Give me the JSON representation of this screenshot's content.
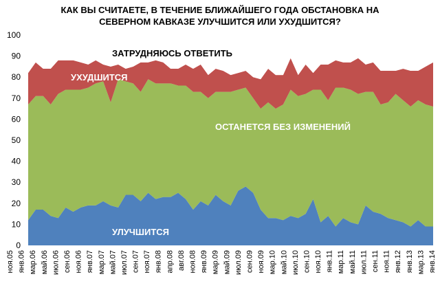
{
  "chart_data": {
    "type": "area",
    "stacked": true,
    "title_lines": [
      "КАК ВЫ СЧИТАЕТЕ, В ТЕЧЕНИЕ БЛИЖАЙШЕГО ГОДА ОБСТАНОВКА НА",
      "СЕВЕРНОМ КАВКАЗЕ УЛУЧШИТСЯ ИЛИ УХУДШИТСЯ?"
    ],
    "xlabel": "",
    "ylabel": "",
    "ylim": [
      0,
      100
    ],
    "yticks": [
      0,
      10,
      20,
      30,
      40,
      50,
      60,
      70,
      80,
      90,
      100
    ],
    "grid": false,
    "legend": "none",
    "x_tick_labels": [
      "ноя.05",
      "янв.06",
      "мар.06",
      "май.06",
      "июл.06",
      "сен.06",
      "ноя.06",
      "янв.07",
      "мар.07",
      "май.07",
      "июл.07",
      "сен.07",
      "ноя.07",
      "янв.08",
      "апр.08",
      "авг.08",
      "ноя.08",
      "янв.09",
      "мар.09",
      "май.09",
      "июл.09",
      "сен.09",
      "ноя.09",
      "мар.10",
      "май.10",
      "июл.10",
      "сен.10",
      "ноя.10",
      "янв.11",
      "мар.11",
      "май.11",
      "июл.11",
      "сен.11",
      "ноя.11",
      "янв.12",
      "янв.13",
      "мар.13",
      "янв.14"
    ],
    "series": [
      {
        "name": "УЛУЧШИТСЯ",
        "color": "#4f81bd",
        "values": [
          12,
          17,
          17,
          14,
          13,
          18,
          16,
          18,
          19,
          19,
          21,
          19,
          18,
          24,
          24,
          21,
          25,
          22,
          23,
          23,
          25,
          22,
          17,
          21,
          19,
          24,
          21,
          19,
          26,
          28,
          25,
          17,
          13,
          13,
          12,
          14,
          13,
          15,
          22,
          11,
          14,
          9,
          13,
          11,
          10,
          19,
          16,
          15,
          13,
          12,
          11,
          9,
          12,
          9,
          9
        ]
      },
      {
        "name": "ОСТАНЕТСЯ БЕЗ ИЗМЕНЕНИЙ",
        "color": "#9bbb59",
        "values": [
          55,
          54,
          54,
          53,
          59,
          56,
          58,
          56,
          56,
          58,
          57,
          49,
          61,
          54,
          53,
          52,
          54,
          55,
          54,
          54,
          51,
          54,
          56,
          52,
          51,
          49,
          52,
          54,
          48,
          47,
          45,
          48,
          55,
          52,
          55,
          60,
          58,
          57,
          52,
          63,
          55,
          66,
          62,
          63,
          62,
          54,
          57,
          52,
          55,
          60,
          58,
          57,
          57,
          58,
          57
        ]
      },
      {
        "name": "УХУДШИТСЯ",
        "color": "#c0504d",
        "values": [
          15,
          16,
          13,
          17,
          16,
          14,
          14,
          13,
          11,
          11,
          8,
          17,
          7,
          6,
          8,
          14,
          8,
          11,
          10,
          7,
          8,
          10,
          11,
          13,
          11,
          11,
          10,
          8,
          8,
          8,
          10,
          14,
          16,
          16,
          14,
          15,
          10,
          14,
          8,
          12,
          17,
          13,
          12,
          13,
          17,
          13,
          14,
          16,
          15,
          11,
          15,
          17,
          14,
          18,
          21
        ]
      },
      {
        "name": "ЗАТРУДНЯЮСЬ ОТВЕТИТЬ",
        "color": "#ffffff",
        "values": [
          18,
          13,
          16,
          16,
          12,
          12,
          12,
          13,
          14,
          12,
          14,
          15,
          14,
          16,
          15,
          13,
          13,
          12,
          13,
          16,
          16,
          14,
          16,
          14,
          19,
          16,
          17,
          19,
          18,
          17,
          20,
          21,
          16,
          19,
          19,
          11,
          19,
          14,
          18,
          14,
          14,
          12,
          13,
          13,
          11,
          14,
          13,
          17,
          17,
          17,
          16,
          17,
          17,
          15,
          13
        ]
      }
    ],
    "area_labels": {
      "improve": "УЛУЧШИТСЯ",
      "same": "ОСТАНЕТСЯ БЕЗ ИЗМЕНЕНИЙ",
      "worse": "УХУДШИТСЯ",
      "undecided": "ЗАТРУДНЯЮСЬ ОТВЕТИТЬ"
    }
  }
}
